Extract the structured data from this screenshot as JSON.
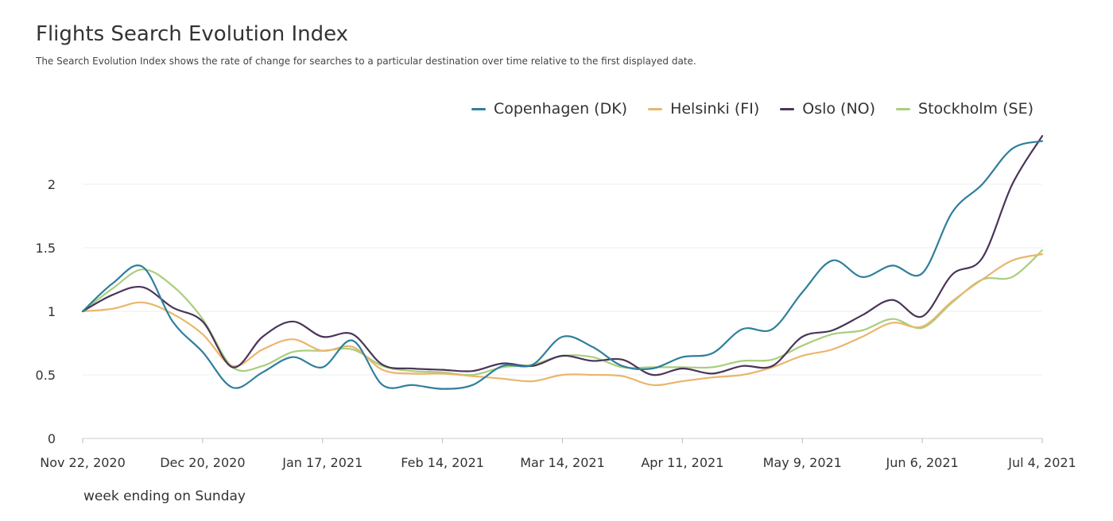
{
  "chart_data": {
    "type": "line",
    "title": "Flights Search Evolution Index",
    "subtitle": "The Search Evolution Index shows the rate of change for searches to a particular destination over time relative to the first displayed date.",
    "xlabel": "week ending on Sunday",
    "ylabel": "",
    "x": [
      "2020-11-22",
      "2020-11-29",
      "2020-12-06",
      "2020-12-13",
      "2020-12-20",
      "2020-12-27",
      "2021-01-03",
      "2021-01-10",
      "2021-01-17",
      "2021-01-24",
      "2021-01-31",
      "2021-02-07",
      "2021-02-14",
      "2021-02-21",
      "2021-02-28",
      "2021-03-07",
      "2021-03-14",
      "2021-03-21",
      "2021-03-28",
      "2021-04-04",
      "2021-04-11",
      "2021-04-18",
      "2021-04-25",
      "2021-05-02",
      "2021-05-09",
      "2021-05-16",
      "2021-05-23",
      "2021-05-30",
      "2021-06-06",
      "2021-06-13",
      "2021-06-20",
      "2021-06-27",
      "2021-07-04"
    ],
    "x_tick_labels": [
      "Nov 22, 2020",
      "Dec 20, 2020",
      "Jan 17, 2021",
      "Feb 14, 2021",
      "Mar 14, 2021",
      "Apr 11, 2021",
      "May 9, 2021",
      "Jun 6, 2021",
      "Jul 4, 2021"
    ],
    "y_ticks": [
      0,
      0.5,
      1,
      1.5,
      2
    ],
    "y_tick_labels": [
      "0",
      "0.5",
      "1",
      "1.5",
      "2"
    ],
    "ylim": [
      0,
      2.45
    ],
    "grid": true,
    "legend_position": "top-right",
    "series": [
      {
        "name": "Copenhagen (DK)",
        "color": "#2f7f9c",
        "values": [
          1.0,
          1.22,
          1.35,
          0.92,
          0.68,
          0.4,
          0.52,
          0.64,
          0.56,
          0.77,
          0.42,
          0.42,
          0.39,
          0.42,
          0.57,
          0.58,
          0.8,
          0.72,
          0.57,
          0.55,
          0.64,
          0.67,
          0.86,
          0.86,
          1.15,
          1.4,
          1.27,
          1.36,
          1.3,
          1.78,
          2.0,
          2.28,
          2.34
        ]
      },
      {
        "name": "Helsinki (FI)",
        "color": "#e9b66b",
        "values": [
          1.0,
          1.02,
          1.07,
          0.98,
          0.82,
          0.57,
          0.7,
          0.78,
          0.69,
          0.72,
          0.54,
          0.51,
          0.51,
          0.49,
          0.47,
          0.45,
          0.5,
          0.5,
          0.49,
          0.42,
          0.45,
          0.48,
          0.5,
          0.56,
          0.65,
          0.7,
          0.8,
          0.91,
          0.88,
          1.08,
          1.25,
          1.4,
          1.45
        ]
      },
      {
        "name": "Oslo (NO)",
        "color": "#4a3558",
        "values": [
          1.0,
          1.13,
          1.19,
          1.03,
          0.92,
          0.56,
          0.8,
          0.92,
          0.8,
          0.82,
          0.58,
          0.55,
          0.54,
          0.53,
          0.59,
          0.57,
          0.65,
          0.61,
          0.62,
          0.5,
          0.55,
          0.51,
          0.57,
          0.57,
          0.8,
          0.85,
          0.97,
          1.09,
          0.96,
          1.29,
          1.42,
          2.0,
          2.38
        ]
      },
      {
        "name": "Stockholm (SE)",
        "color": "#a8cf7d",
        "values": [
          1.0,
          1.18,
          1.33,
          1.2,
          0.94,
          0.56,
          0.57,
          0.68,
          0.69,
          0.7,
          0.57,
          0.53,
          0.52,
          0.5,
          0.56,
          0.58,
          0.65,
          0.64,
          0.56,
          0.56,
          0.56,
          0.56,
          0.61,
          0.62,
          0.73,
          0.82,
          0.85,
          0.94,
          0.87,
          1.07,
          1.25,
          1.27,
          1.48
        ]
      }
    ]
  }
}
